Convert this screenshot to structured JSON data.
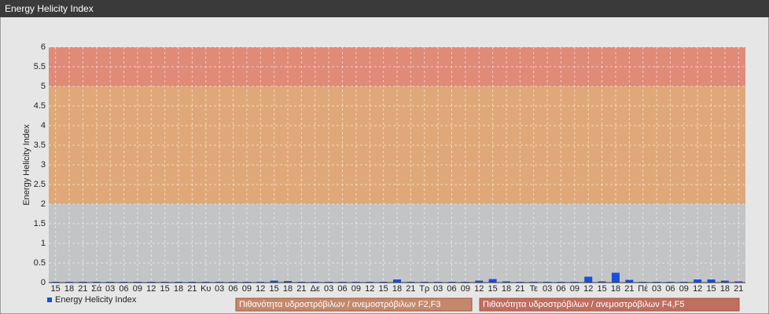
{
  "chart_data": {
    "type": "bar",
    "title": "Energy Helicity Index",
    "y_label": "Energy Helicity Index",
    "categories": [
      "15",
      "18",
      "21",
      "Σά",
      "03",
      "06",
      "09",
      "12",
      "15",
      "18",
      "21",
      "Κυ",
      "03",
      "06",
      "09",
      "12",
      "15",
      "18",
      "21",
      "Δε",
      "03",
      "06",
      "09",
      "12",
      "15",
      "18",
      "21",
      "Τρ",
      "03",
      "06",
      "09",
      "12",
      "15",
      "18",
      "21",
      "Τε",
      "03",
      "06",
      "09",
      "12",
      "15",
      "18",
      "21",
      "Πέ",
      "03",
      "06",
      "09",
      "12",
      "15",
      "18",
      "21"
    ],
    "series": [
      {
        "name": "Energy Helicity Index",
        "color": "#1a4fd6",
        "values": [
          0.02,
          0.02,
          0.02,
          0.02,
          0.02,
          0.02,
          0.02,
          0.02,
          0.02,
          0.02,
          0.02,
          0.02,
          0.02,
          0.02,
          0.02,
          0.02,
          0.05,
          0.04,
          0.02,
          0.02,
          0.02,
          0.02,
          0.02,
          0.02,
          0.02,
          0.08,
          0.02,
          0.02,
          0.02,
          0.02,
          0.02,
          0.05,
          0.09,
          0.03,
          0.02,
          0.02,
          0.02,
          0.02,
          0.02,
          0.15,
          0.03,
          0.25,
          0.07,
          0.02,
          0.02,
          0.02,
          0.02,
          0.08,
          0.08,
          0.05,
          0.03
        ]
      }
    ],
    "bands": [
      {
        "from": 2,
        "to": 5,
        "color": "#e0a878",
        "legend_color": "#c4896a",
        "label": "Πιθανότητα υδροστρόβιλων / ανεμοστρόβιλων F2,F3"
      },
      {
        "from": 5,
        "to": 6,
        "color": "#e08a78",
        "legend_color": "#c06e60",
        "label": "Πιθανότητα υδροστρόβιλων / ανεμοστρόβιλων F4,F5"
      }
    ],
    "ylim": [
      0,
      6
    ],
    "yticks": [
      0,
      0.5,
      1,
      1.5,
      2,
      2.5,
      3,
      3.5,
      4,
      4.5,
      5,
      5.5,
      6
    ],
    "grid": true
  }
}
